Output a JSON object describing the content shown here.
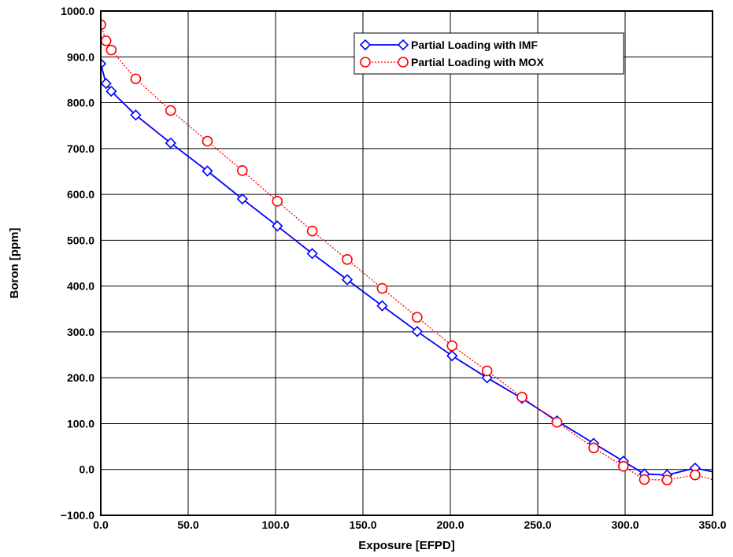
{
  "chart_data": {
    "type": "line",
    "title": "",
    "xlabel": "Exposure [EFPD]",
    "ylabel": "Boron [ppm]",
    "xlim": [
      0,
      350
    ],
    "ylim": [
      -100,
      1000
    ],
    "xticks": [
      0,
      50,
      100,
      150,
      200,
      250,
      300,
      350
    ],
    "yticks": [
      -100,
      0,
      100,
      200,
      300,
      400,
      500,
      600,
      700,
      800,
      900,
      1000
    ],
    "xtick_labels": [
      "0.0",
      "50.0",
      "100.0",
      "150.0",
      "200.0",
      "250.0",
      "300.0",
      "350.0"
    ],
    "ytick_labels": [
      "−100.0",
      "0.0",
      "100.0",
      "200.0",
      "300.0",
      "400.0",
      "500.0",
      "600.0",
      "700.0",
      "800.0",
      "900.0",
      "1000.0"
    ],
    "grid": true,
    "legend_position": "top-right",
    "series": [
      {
        "name": "Partial Loading with IMF",
        "color": "#0000ff",
        "line_style": "solid",
        "marker": "diamond",
        "x": [
          0,
          3,
          6,
          20,
          40,
          61,
          81,
          101,
          121,
          141,
          161,
          181,
          201,
          221,
          241,
          261,
          282,
          299,
          311,
          324,
          340,
          350
        ],
        "y": [
          885,
          842,
          825,
          773,
          712,
          651,
          590,
          531,
          471,
          414,
          357,
          301,
          248,
          200,
          155,
          106,
          57,
          18,
          -10,
          -12,
          3,
          -5
        ]
      },
      {
        "name": "Partial Loading with MOX",
        "color": "#ff0000",
        "line_style": "dotted",
        "marker": "circle",
        "x": [
          0,
          3,
          6,
          20,
          40,
          61,
          81,
          101,
          121,
          141,
          161,
          181,
          201,
          221,
          241,
          261,
          282,
          299,
          311,
          324,
          340,
          350
        ],
        "y": [
          970,
          935,
          915,
          852,
          783,
          716,
          652,
          585,
          520,
          458,
          395,
          332,
          270,
          215,
          158,
          103,
          47,
          7,
          -22,
          -23,
          -12,
          -22
        ]
      }
    ]
  }
}
